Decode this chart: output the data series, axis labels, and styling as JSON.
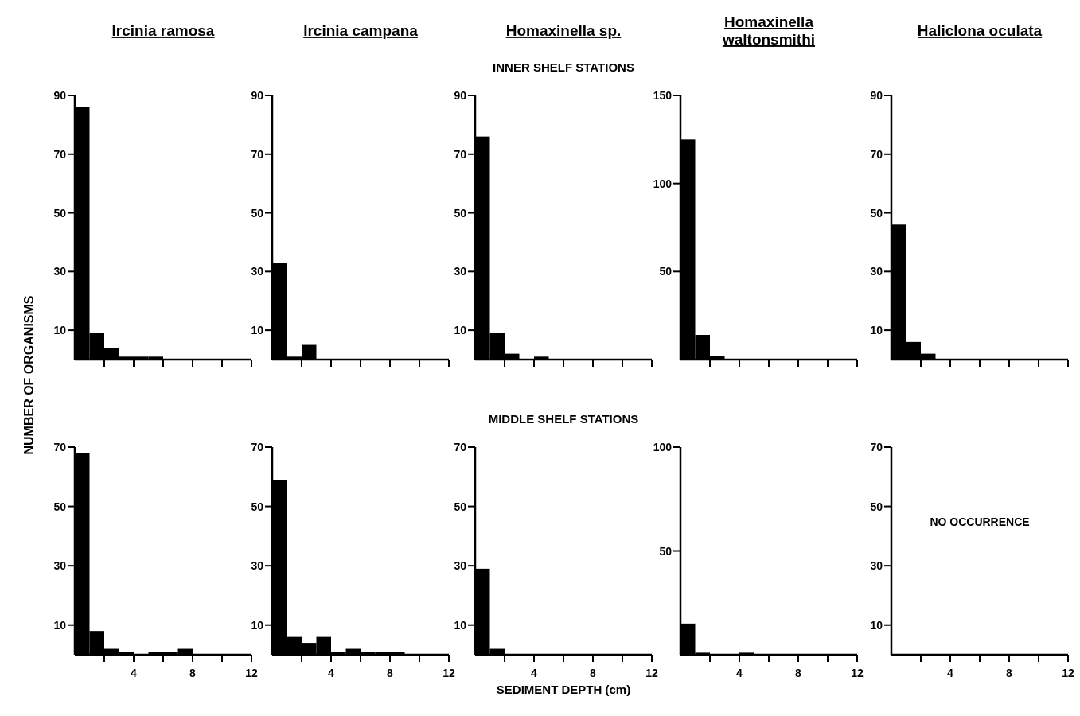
{
  "chart_data": [
    {
      "type": "histogram",
      "title": "Ircinia ramosa",
      "ylabel": "NUMBER OF ORGANISMS",
      "bins": [
        0,
        1,
        2,
        3,
        4,
        5,
        6
      ],
      "values": [
        86,
        9,
        4,
        1,
        1,
        1
      ],
      "color": "#000000",
      "xlim": [
        0,
        12
      ],
      "xticks": [
        {
          "value": 2,
          "label": null
        },
        {
          "value": 4,
          "label": null
        },
        {
          "value": 6,
          "label": null
        },
        {
          "value": 8,
          "label": null
        },
        {
          "value": 10,
          "label": null
        },
        {
          "value": 12,
          "label": null
        }
      ],
      "ylim": [
        0,
        90
      ],
      "yticks": [
        10,
        30,
        50,
        70,
        90
      ],
      "tick_labels": "y"
    },
    {
      "type": "histogram",
      "title": "Ircinia campana",
      "bins": [
        0,
        1,
        2,
        3
      ],
      "values": [
        33,
        1,
        5
      ],
      "color": "#000000",
      "xlim": [
        0,
        12
      ],
      "xticks": [
        {
          "value": 2,
          "label": null
        },
        {
          "value": 4,
          "label": null
        },
        {
          "value": 6,
          "label": null
        },
        {
          "value": 8,
          "label": null
        },
        {
          "value": 10,
          "label": null
        },
        {
          "value": 12,
          "label": null
        }
      ],
      "ylim": [
        0,
        90
      ],
      "yticks": [
        10,
        30,
        50,
        70,
        90
      ],
      "tick_labels": "y"
    },
    {
      "type": "histogram",
      "title": "Homaxinella sp.",
      "subtitle": "INNER SHELF STATIONS",
      "bins": [
        0,
        1,
        2,
        3,
        4,
        5
      ],
      "values": [
        76,
        9,
        2,
        0,
        1
      ],
      "color": "#000000",
      "xlim": [
        0,
        12
      ],
      "xticks": [
        {
          "value": 2,
          "label": null
        },
        {
          "value": 4,
          "label": null
        },
        {
          "value": 6,
          "label": null
        },
        {
          "value": 8,
          "label": null
        },
        {
          "value": 10,
          "label": null
        },
        {
          "value": 12,
          "label": null
        }
      ],
      "ylim": [
        0,
        90
      ],
      "yticks": [
        10,
        30,
        50,
        70,
        90
      ],
      "tick_labels": "y"
    },
    {
      "type": "histogram",
      "title": "Homaxinella waltonsmithi",
      "bins": [
        0,
        1,
        2,
        3
      ],
      "values": [
        125,
        14,
        2
      ],
      "color": "#000000",
      "xlim": [
        0,
        12
      ],
      "xticks": [
        {
          "value": 2,
          "label": null
        },
        {
          "value": 4,
          "label": null
        },
        {
          "value": 6,
          "label": null
        },
        {
          "value": 8,
          "label": null
        },
        {
          "value": 10,
          "label": null
        },
        {
          "value": 12,
          "label": null
        }
      ],
      "ylim": [
        0,
        150
      ],
      "yticks": [
        50,
        100,
        150
      ],
      "tick_labels": "y"
    },
    {
      "type": "histogram",
      "title": "Haliclona oculata",
      "bins": [
        0,
        1,
        2,
        3
      ],
      "values": [
        46,
        6,
        2
      ],
      "color": "#000000",
      "xlim": [
        0,
        12
      ],
      "xticks": [
        {
          "value": 2,
          "label": null
        },
        {
          "value": 4,
          "label": null
        },
        {
          "value": 6,
          "label": null
        },
        {
          "value": 8,
          "label": null
        },
        {
          "value": 10,
          "label": null
        },
        {
          "value": 12,
          "label": null
        }
      ],
      "ylim": [
        0,
        90
      ],
      "yticks": [
        10,
        30,
        50,
        70,
        90
      ],
      "tick_labels": "y"
    },
    {
      "type": "histogram",
      "bins": [
        0,
        1,
        2,
        3,
        4,
        5,
        6,
        7,
        8
      ],
      "values": [
        68,
        8,
        2,
        1,
        0,
        1,
        1,
        2
      ],
      "color": "#000000",
      "xlim": [
        0,
        12
      ],
      "xticks": [
        {
          "value": 2,
          "label": null
        },
        4,
        {
          "value": 6,
          "label": null
        },
        8,
        {
          "value": 10,
          "label": null
        },
        12
      ],
      "ylim": [
        0,
        70
      ],
      "yticks": [
        10,
        30,
        50,
        70
      ]
    },
    {
      "type": "histogram",
      "bins": [
        0,
        1,
        2,
        3,
        4,
        5,
        6,
        7,
        8,
        9
      ],
      "values": [
        59,
        6,
        4,
        6,
        1,
        2,
        1,
        1,
        1
      ],
      "color": "#000000",
      "xlim": [
        0,
        12
      ],
      "xticks": [
        {
          "value": 2,
          "label": null
        },
        4,
        {
          "value": 6,
          "label": null
        },
        8,
        {
          "value": 10,
          "label": null
        },
        12
      ],
      "ylim": [
        0,
        70
      ],
      "yticks": [
        10,
        30,
        50,
        70
      ]
    },
    {
      "type": "histogram",
      "subtitle": "MIDDLE SHELF STATIONS",
      "xlabel": "SEDIMENT DEPTH (cm)",
      "bins": [
        0,
        1,
        2
      ],
      "values": [
        29,
        2
      ],
      "color": "#000000",
      "xlim": [
        0,
        12
      ],
      "xticks": [
        {
          "value": 2,
          "label": null
        },
        4,
        {
          "value": 6,
          "label": null
        },
        8,
        {
          "value": 10,
          "label": null
        },
        12
      ],
      "ylim": [
        0,
        70
      ],
      "yticks": [
        10,
        30,
        50,
        70
      ]
    },
    {
      "type": "histogram",
      "bins": [
        0,
        1,
        2,
        3,
        4,
        5
      ],
      "values": [
        15,
        1,
        0,
        0,
        1
      ],
      "color": "#000000",
      "xlim": [
        0,
        12
      ],
      "xticks": [
        {
          "value": 2,
          "label": null
        },
        4,
        {
          "value": 6,
          "label": null
        },
        8,
        {
          "value": 10,
          "label": null
        },
        12
      ],
      "ylim": [
        0,
        100
      ],
      "yticks": [
        50,
        100
      ]
    },
    {
      "type": "histogram",
      "annotations": [
        "NO OCCURRENCE"
      ],
      "xlim": [
        0,
        12
      ],
      "xticks": [
        {
          "value": 2,
          "label": null
        },
        4,
        {
          "value": 6,
          "label": null
        },
        8,
        {
          "value": 10,
          "label": null
        },
        12
      ],
      "ylim": [
        0,
        70
      ],
      "yticks": [
        10,
        30,
        50,
        70
      ]
    }
  ]
}
